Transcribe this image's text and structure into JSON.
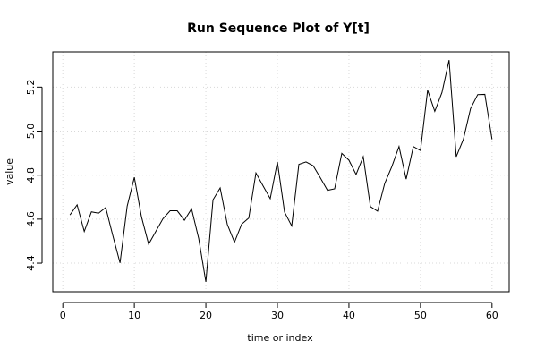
{
  "chart_data": {
    "type": "line",
    "title": "Run Sequence Plot of Y[t]",
    "xlabel": "time or index",
    "ylabel": "value",
    "xlim": [
      -1.4,
      62.4
    ],
    "ylim": [
      4.27,
      5.36
    ],
    "x_ticks": [
      0,
      10,
      20,
      30,
      40,
      50,
      60
    ],
    "y_ticks": [
      4.4,
      4.6,
      4.8,
      5.0,
      5.2
    ],
    "y_tick_labels": [
      "4.4",
      "4.6",
      "4.8",
      "5.0",
      "5.2"
    ],
    "grid": true,
    "x": [
      1,
      2,
      3,
      4,
      5,
      6,
      7,
      8,
      9,
      10,
      11,
      12,
      13,
      14,
      15,
      16,
      17,
      18,
      19,
      20,
      21,
      22,
      23,
      24,
      25,
      26,
      27,
      28,
      29,
      30,
      31,
      32,
      33,
      34,
      35,
      36,
      37,
      38,
      39,
      40,
      41,
      42,
      43,
      44,
      45,
      46,
      47,
      48,
      49,
      50,
      51,
      52,
      53,
      54,
      55,
      56,
      57,
      58,
      59,
      60
    ],
    "values": [
      4.619,
      4.665,
      4.544,
      4.633,
      4.627,
      4.653,
      4.524,
      4.401,
      4.659,
      4.79,
      4.61,
      4.486,
      4.544,
      4.602,
      4.638,
      4.638,
      4.595,
      4.647,
      4.512,
      4.315,
      4.688,
      4.742,
      4.576,
      4.495,
      4.577,
      4.605,
      4.81,
      4.751,
      4.693,
      4.86,
      4.632,
      4.569,
      4.849,
      4.86,
      4.843,
      4.788,
      4.731,
      4.738,
      4.899,
      4.868,
      4.803,
      4.884,
      4.657,
      4.636,
      4.762,
      4.839,
      4.93,
      4.782,
      4.93,
      4.912,
      5.186,
      5.09,
      5.175,
      5.323,
      4.884,
      4.963,
      5.102,
      5.166,
      5.167,
      4.963
    ]
  }
}
